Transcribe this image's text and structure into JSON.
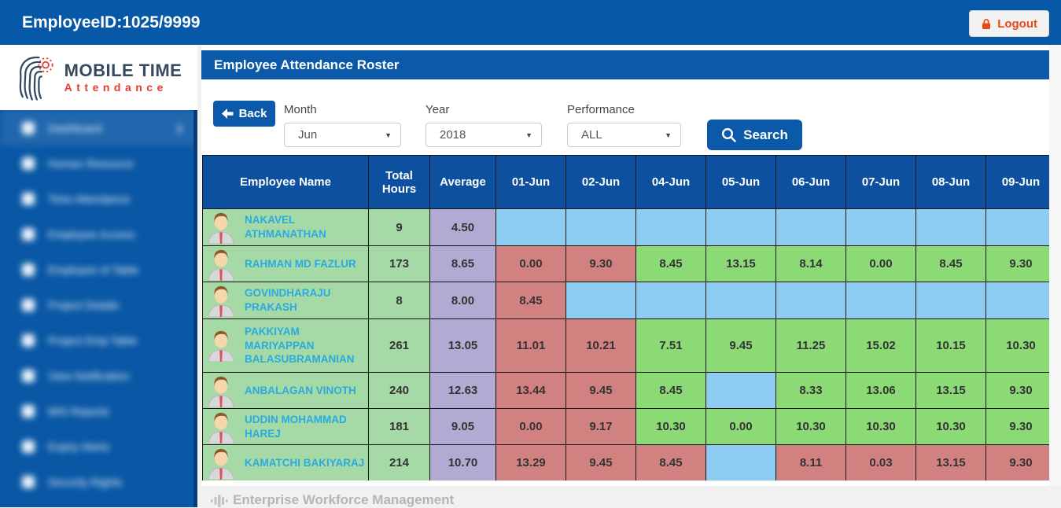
{
  "top_bar": {
    "employee_id": "EmployeeID:1025/9999",
    "logout_label": "Logout"
  },
  "logo": {
    "line1": "MOBILE TIME",
    "line2": "Attendance"
  },
  "sidebar": {
    "note": "menu items are blurred in the source screenshot",
    "items": [
      {
        "label": "Dashboard",
        "icon": "dashboard-icon",
        "active": true,
        "chevron": true
      },
      {
        "label": "Human Resource",
        "icon": "person-icon",
        "active": false,
        "chevron": false
      },
      {
        "label": "Time Attendance",
        "icon": "clock-icon",
        "active": false,
        "chevron": false
      },
      {
        "label": "Employee Access",
        "icon": "card-icon",
        "active": false,
        "chevron": false
      },
      {
        "label": "Employee of Table",
        "icon": "key-icon",
        "active": false,
        "chevron": false
      },
      {
        "label": "Project Details",
        "icon": "folder-icon",
        "active": false,
        "chevron": false
      },
      {
        "label": "Project Emp Table",
        "icon": "table-icon",
        "active": false,
        "chevron": false
      },
      {
        "label": "View Notification",
        "icon": "bell-icon",
        "active": false,
        "chevron": false
      },
      {
        "label": "MIS Reports",
        "icon": "report-icon",
        "active": false,
        "chevron": false
      },
      {
        "label": "Expiry Alerts",
        "icon": "alert-icon",
        "active": false,
        "chevron": false
      },
      {
        "label": "Security Rights",
        "icon": "shield-icon",
        "active": false,
        "chevron": false
      }
    ]
  },
  "panel": {
    "title": "Employee Attendance Roster"
  },
  "filters": {
    "back_label": "Back",
    "month_label": "Month",
    "month_value": "Jun",
    "year_label": "Year",
    "year_value": "2018",
    "performance_label": "Performance",
    "performance_value": "ALL",
    "search_label": "Search"
  },
  "icons": {
    "dropdown_arrow": "▼",
    "chevron": "❯"
  },
  "table": {
    "columns": [
      "Employee Name",
      "Total Hours",
      "Average",
      "01-Jun",
      "02-Jun",
      "04-Jun",
      "05-Jun",
      "06-Jun",
      "07-Jun",
      "08-Jun",
      "09-Jun"
    ],
    "rows": [
      {
        "name": "NAKAVEL ATHMANATHAN",
        "total": "9",
        "average": "4.50",
        "days": [
          {
            "v": "",
            "s": "empty"
          },
          {
            "v": "",
            "s": "empty"
          },
          {
            "v": "",
            "s": "empty"
          },
          {
            "v": "",
            "s": "empty"
          },
          {
            "v": "",
            "s": "empty"
          },
          {
            "v": "",
            "s": "empty"
          },
          {
            "v": "",
            "s": "empty"
          },
          {
            "v": "",
            "s": "empty"
          }
        ]
      },
      {
        "name": "RAHMAN MD FAZLUR",
        "total": "173",
        "average": "8.65",
        "days": [
          {
            "v": "0.00",
            "s": "bad"
          },
          {
            "v": "9.30",
            "s": "bad"
          },
          {
            "v": "8.45",
            "s": "good"
          },
          {
            "v": "13.15",
            "s": "good"
          },
          {
            "v": "8.14",
            "s": "good"
          },
          {
            "v": "0.00",
            "s": "good"
          },
          {
            "v": "8.45",
            "s": "good"
          },
          {
            "v": "9.30",
            "s": "good"
          }
        ]
      },
      {
        "name": "GOVINDHARAJU PRAKASH",
        "total": "8",
        "average": "8.00",
        "days": [
          {
            "v": "8.45",
            "s": "bad"
          },
          {
            "v": "",
            "s": "empty"
          },
          {
            "v": "",
            "s": "empty"
          },
          {
            "v": "",
            "s": "empty"
          },
          {
            "v": "",
            "s": "empty"
          },
          {
            "v": "",
            "s": "empty"
          },
          {
            "v": "",
            "s": "empty"
          },
          {
            "v": "",
            "s": "empty"
          }
        ]
      },
      {
        "name": "PAKKIYAM MARIYAPPAN BALASUBRAMANIAN",
        "total": "261",
        "average": "13.05",
        "days": [
          {
            "v": "11.01",
            "s": "bad"
          },
          {
            "v": "10.21",
            "s": "bad"
          },
          {
            "v": "7.51",
            "s": "good"
          },
          {
            "v": "9.45",
            "s": "good"
          },
          {
            "v": "11.25",
            "s": "good"
          },
          {
            "v": "15.02",
            "s": "good"
          },
          {
            "v": "10.15",
            "s": "good"
          },
          {
            "v": "10.30",
            "s": "good"
          }
        ]
      },
      {
        "name": "ANBALAGAN VINOTH",
        "total": "240",
        "average": "12.63",
        "days": [
          {
            "v": "13.44",
            "s": "bad"
          },
          {
            "v": "9.45",
            "s": "bad"
          },
          {
            "v": "8.45",
            "s": "good"
          },
          {
            "v": "",
            "s": "empty"
          },
          {
            "v": "8.33",
            "s": "good"
          },
          {
            "v": "13.06",
            "s": "good"
          },
          {
            "v": "13.15",
            "s": "good"
          },
          {
            "v": "9.30",
            "s": "good"
          }
        ]
      },
      {
        "name": "UDDIN MOHAMMAD HAREJ",
        "total": "181",
        "average": "9.05",
        "days": [
          {
            "v": "0.00",
            "s": "bad"
          },
          {
            "v": "9.17",
            "s": "bad"
          },
          {
            "v": "10.30",
            "s": "good"
          },
          {
            "v": "0.00",
            "s": "good"
          },
          {
            "v": "10.30",
            "s": "good"
          },
          {
            "v": "10.30",
            "s": "good"
          },
          {
            "v": "10.30",
            "s": "good"
          },
          {
            "v": "9.30",
            "s": "good"
          }
        ]
      },
      {
        "name": "KAMATCHI BAKIYARAJ",
        "total": "214",
        "average": "10.70",
        "days": [
          {
            "v": "13.29",
            "s": "bad"
          },
          {
            "v": "9.45",
            "s": "bad"
          },
          {
            "v": "8.45",
            "s": "bad"
          },
          {
            "v": "",
            "s": "empty"
          },
          {
            "v": "8.11",
            "s": "bad"
          },
          {
            "v": "0.03",
            "s": "bad"
          },
          {
            "v": "13.15",
            "s": "bad"
          },
          {
            "v": "9.30",
            "s": "bad"
          }
        ]
      }
    ]
  },
  "footer": {
    "text": "Enterprise Workforce Management"
  },
  "colors": {
    "primary_blue": "#0758a6",
    "title_blue": "#0b5aa9",
    "table_header_blue": "#0c509f",
    "row_green": "#a5d9a6",
    "average_purple": "#b3aad3",
    "day_good_green": "#8bda75",
    "day_bad_red": "#d28181",
    "day_empty_blue": "#8fccf1",
    "name_link": "#29abe2",
    "logout_red": "#e64a19",
    "logo_navy": "#36495e",
    "logo_red": "#e8392f"
  }
}
